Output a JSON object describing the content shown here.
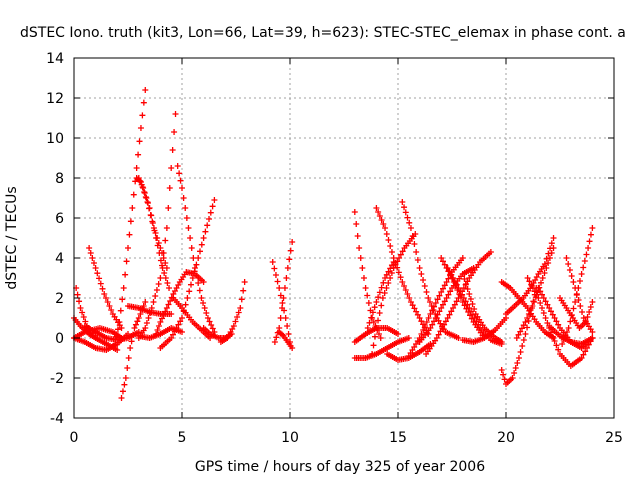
{
  "chart_data": {
    "type": "scatter",
    "title": "dSTEC Iono. truth (kit3, Lon=66, Lat=39, h=623): STEC-STEC_elemax in phase cont. a",
    "xlabel": "GPS time / hours of day 325 of year 2006",
    "ylabel": "dSTEC  / TECUs",
    "xlim": [
      0,
      25
    ],
    "ylim": [
      -4,
      14
    ],
    "xticks": [
      0,
      5,
      10,
      15,
      20,
      25
    ],
    "yticks": [
      -4,
      -2,
      0,
      2,
      4,
      6,
      8,
      10,
      12,
      14
    ],
    "x_tick_labels": [
      "0",
      "5",
      "10",
      "15",
      "20",
      "25"
    ],
    "y_tick_labels": [
      "-4",
      "-2",
      "0",
      "2",
      "4",
      "6",
      "8",
      "10",
      "12",
      "14"
    ],
    "grid": true,
    "marker": "plus",
    "series_color": "#ff0000",
    "legend": "none",
    "arcs": [
      {
        "x": [
          0.0,
          0.3,
          0.7,
          1.0
        ],
        "y": [
          1.0,
          0.6,
          0.2,
          0.0
        ]
      },
      {
        "x": [
          0.1,
          0.3,
          0.6,
          1.0,
          1.5,
          2.0
        ],
        "y": [
          2.5,
          1.5,
          0.6,
          0.0,
          -0.3,
          -0.6
        ]
      },
      {
        "x": [
          0.0,
          0.5,
          1.0,
          1.5,
          2.0,
          2.5
        ],
        "y": [
          0.0,
          -0.2,
          -0.5,
          -0.6,
          -0.3,
          0.2
        ]
      },
      {
        "x": [
          0.0,
          0.5,
          1.2,
          1.8,
          2.2
        ],
        "y": [
          0.0,
          0.3,
          0.5,
          0.3,
          0.0
        ]
      },
      {
        "x": [
          0.7,
          1.0,
          1.4,
          1.8,
          2.2
        ],
        "y": [
          4.5,
          3.5,
          2.2,
          1.2,
          0.5
        ]
      },
      {
        "x": [
          0.5,
          1.0,
          1.5,
          2.0,
          2.5,
          3.0
        ],
        "y": [
          0.6,
          0.3,
          0.0,
          -0.1,
          0.0,
          0.3
        ]
      },
      {
        "x": [
          2.2,
          2.4,
          2.6,
          2.8,
          3.0,
          3.3
        ],
        "y": [
          -3.0,
          -2.0,
          -0.5,
          0.5,
          1.0,
          1.8
        ]
      },
      {
        "x": [
          1.9,
          2.1,
          2.3,
          2.5,
          2.7,
          2.9,
          3.1,
          3.3
        ],
        "y": [
          -0.3,
          0.8,
          2.5,
          4.5,
          6.5,
          8.5,
          10.5,
          12.4
        ]
      },
      {
        "x": [
          2.9,
          3.1,
          3.4,
          3.7,
          4.0,
          4.3
        ],
        "y": [
          8.0,
          7.8,
          6.8,
          5.5,
          4.5,
          3.5
        ]
      },
      {
        "x": [
          3.0,
          3.2,
          3.5,
          3.8,
          4.1,
          4.4
        ],
        "y": [
          8.0,
          7.5,
          6.5,
          5.0,
          3.5,
          2.5
        ]
      },
      {
        "x": [
          2.5,
          3.0,
          3.5,
          4.0,
          4.5
        ],
        "y": [
          1.6,
          1.5,
          1.3,
          1.2,
          1.2
        ]
      },
      {
        "x": [
          3.0,
          3.3,
          3.6,
          4.0,
          4.3,
          4.5,
          4.7
        ],
        "y": [
          0.0,
          0.5,
          1.5,
          3.0,
          5.5,
          8.5,
          11.2
        ]
      },
      {
        "x": [
          3.8,
          4.0,
          4.3,
          4.6,
          4.9,
          5.2,
          5.6,
          6.0
        ],
        "y": [
          0.2,
          0.8,
          1.5,
          2.2,
          2.8,
          3.3,
          3.2,
          2.8
        ]
      },
      {
        "x": [
          3.0,
          3.5,
          4.0,
          4.5,
          5.0
        ],
        "y": [
          0.1,
          0.0,
          0.2,
          0.5,
          0.3
        ]
      },
      {
        "x": [
          4.8,
          5.0,
          5.3,
          5.6,
          5.9,
          6.2,
          6.5
        ],
        "y": [
          8.6,
          7.5,
          5.5,
          3.5,
          2.0,
          1.0,
          0.3
        ]
      },
      {
        "x": [
          4.0,
          4.5,
          5.0,
          5.5,
          6.0,
          6.5
        ],
        "y": [
          -0.5,
          0.0,
          1.0,
          3.0,
          5.0,
          6.9
        ]
      },
      {
        "x": [
          4.6,
          5.0,
          5.5,
          6.0,
          6.3
        ],
        "y": [
          2.0,
          1.5,
          0.8,
          0.3,
          0.0
        ]
      },
      {
        "x": [
          6.0,
          6.3,
          6.7,
          7.0,
          7.3
        ],
        "y": [
          0.5,
          0.2,
          0.0,
          0.0,
          0.2
        ]
      },
      {
        "x": [
          6.8,
          7.1,
          7.4,
          7.7,
          7.9
        ],
        "y": [
          -0.2,
          0.0,
          0.6,
          1.5,
          2.8
        ]
      },
      {
        "x": [
          9.2,
          9.5,
          9.8,
          10.0
        ],
        "y": [
          3.8,
          2.5,
          1.0,
          -0.2
        ]
      },
      {
        "x": [
          9.3,
          9.5,
          9.7,
          9.9,
          10.1
        ],
        "y": [
          -0.2,
          0.5,
          2.0,
          3.5,
          4.8
        ]
      },
      {
        "x": [
          9.5,
          9.7,
          9.9,
          10.1
        ],
        "y": [
          0.3,
          0.1,
          -0.2,
          -0.5
        ]
      },
      {
        "x": [
          13.0,
          13.2,
          13.5,
          13.8,
          14.2
        ],
        "y": [
          6.3,
          4.5,
          2.5,
          1.0,
          0.0
        ]
      },
      {
        "x": [
          13.0,
          13.5,
          14.0,
          14.5,
          15.0
        ],
        "y": [
          -0.2,
          0.2,
          0.5,
          0.5,
          0.2
        ]
      },
      {
        "x": [
          13.0,
          13.5,
          14.0,
          14.5,
          15.0,
          15.5
        ],
        "y": [
          -1.0,
          -1.0,
          -0.8,
          -0.5,
          -0.2,
          0.0
        ]
      },
      {
        "x": [
          13.8,
          14.0,
          14.3,
          14.8,
          15.3,
          15.8
        ],
        "y": [
          -0.8,
          0.5,
          2.0,
          3.5,
          4.5,
          5.2
        ]
      },
      {
        "x": [
          13.6,
          14.0,
          14.4,
          14.8
        ],
        "y": [
          0.5,
          1.8,
          3.0,
          3.8
        ]
      },
      {
        "x": [
          14.0,
          14.4,
          14.8,
          15.2,
          15.6,
          16.0,
          16.4
        ],
        "y": [
          6.5,
          5.5,
          4.0,
          2.8,
          1.8,
          1.0,
          0.2
        ]
      },
      {
        "x": [
          14.5,
          15.0,
          15.5,
          16.0,
          16.5
        ],
        "y": [
          -0.8,
          -1.1,
          -1.0,
          -0.7,
          -0.3
        ]
      },
      {
        "x": [
          15.2,
          15.6,
          16.0,
          16.4,
          16.8,
          17.2,
          17.8
        ],
        "y": [
          6.8,
          5.5,
          3.5,
          2.0,
          1.0,
          0.3,
          0.0
        ]
      },
      {
        "x": [
          15.5,
          16.0,
          16.5,
          17.0,
          17.5,
          18.0
        ],
        "y": [
          -0.9,
          0.0,
          1.2,
          2.3,
          3.3,
          4.0
        ]
      },
      {
        "x": [
          16.0,
          16.5,
          17.0,
          17.5,
          18.0,
          18.5
        ],
        "y": [
          -0.2,
          0.5,
          1.5,
          2.5,
          3.2,
          3.5
        ]
      },
      {
        "x": [
          16.3,
          16.8,
          17.3,
          17.8,
          18.3,
          18.8,
          19.3
        ],
        "y": [
          -0.8,
          0.0,
          1.0,
          2.0,
          3.0,
          3.8,
          4.3
        ]
      },
      {
        "x": [
          17.0,
          17.5,
          18.0,
          18.5,
          19.0
        ],
        "y": [
          4.0,
          3.0,
          1.8,
          0.8,
          0.0
        ]
      },
      {
        "x": [
          17.3,
          17.8,
          18.3,
          18.8,
          19.3,
          19.8
        ],
        "y": [
          3.5,
          2.5,
          1.5,
          0.5,
          -0.1,
          -0.3
        ]
      },
      {
        "x": [
          18.0,
          18.3,
          18.6,
          19.0,
          19.5,
          19.8
        ],
        "y": [
          3.2,
          2.2,
          1.2,
          0.5,
          0.0,
          -0.2
        ]
      },
      {
        "x": [
          18.0,
          18.5,
          19.0,
          19.5,
          20.0
        ],
        "y": [
          -0.1,
          -0.2,
          0.0,
          0.4,
          1.0
        ]
      },
      {
        "x": [
          19.8,
          20.0,
          20.3,
          20.6,
          20.9,
          21.2,
          21.4
        ],
        "y": [
          -1.6,
          -2.3,
          -2.0,
          -1.0,
          0.2,
          1.5,
          2.5
        ]
      },
      {
        "x": [
          19.8,
          20.2,
          20.6,
          21.0,
          21.4,
          21.8,
          22.2
        ],
        "y": [
          2.8,
          2.5,
          2.0,
          1.5,
          0.8,
          0.3,
          0.0
        ]
      },
      {
        "x": [
          20.0,
          20.4,
          20.8,
          21.2,
          21.5,
          21.8,
          22.2
        ],
        "y": [
          1.2,
          1.6,
          2.0,
          2.6,
          3.2,
          3.7,
          5.0
        ]
      },
      {
        "x": [
          20.5,
          20.9,
          21.3,
          21.7,
          22.2
        ],
        "y": [
          0.0,
          0.8,
          1.8,
          3.0,
          4.5
        ]
      },
      {
        "x": [
          21.0,
          21.5,
          22.0,
          22.5,
          23.0,
          23.5,
          24.0
        ],
        "y": [
          3.0,
          2.0,
          0.5,
          -0.8,
          -1.4,
          -1.0,
          0.0
        ]
      },
      {
        "x": [
          21.5,
          22.0,
          22.5,
          23.0,
          23.5,
          24.0
        ],
        "y": [
          2.5,
          1.5,
          0.5,
          -0.2,
          -0.5,
          0.0
        ]
      },
      {
        "x": [
          22.0,
          22.5,
          23.0,
          23.5,
          24.0
        ],
        "y": [
          0.6,
          0.1,
          -0.2,
          -0.3,
          0.0
        ]
      },
      {
        "x": [
          22.6,
          22.9,
          23.2,
          23.5,
          23.8,
          24.0
        ],
        "y": [
          -0.3,
          0.5,
          1.8,
          3.2,
          4.5,
          5.5
        ]
      },
      {
        "x": [
          22.8,
          23.2,
          23.6,
          24.0
        ],
        "y": [
          4.0,
          2.5,
          1.0,
          0.3
        ]
      },
      {
        "x": [
          22.5,
          22.8,
          23.1,
          23.4,
          23.7,
          24.0
        ],
        "y": [
          2.0,
          1.5,
          1.0,
          0.5,
          0.8,
          1.8
        ]
      }
    ]
  }
}
